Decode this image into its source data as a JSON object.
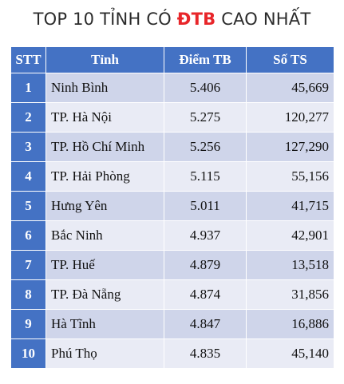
{
  "title": {
    "before": "TOP 10 TỈNH CÓ ",
    "highlight": "ĐTB",
    "after": " CAO NHẤT"
  },
  "colors": {
    "header": "#4472c4",
    "row_odd": "#cfd5ea",
    "row_even": "#e9ebf5",
    "highlight": "#e8262a"
  },
  "table": {
    "headers": [
      "STT",
      "Tỉnh",
      "Điểm TB",
      "Số TS"
    ],
    "rows": [
      {
        "stt": "1",
        "tinh": "Ninh Bình",
        "diem": "5.406",
        "so_ts": "45,669"
      },
      {
        "stt": "2",
        "tinh": "TP. Hà Nội",
        "diem": "5.275",
        "so_ts": "120,277"
      },
      {
        "stt": "3",
        "tinh": "TP. Hồ Chí Minh",
        "diem": "5.256",
        "so_ts": "127,290"
      },
      {
        "stt": "4",
        "tinh": "TP. Hải Phòng",
        "diem": "5.115",
        "so_ts": "55,156"
      },
      {
        "stt": "5",
        "tinh": "Hưng Yên",
        "diem": "5.011",
        "so_ts": "41,715"
      },
      {
        "stt": "6",
        "tinh": "Bắc Ninh",
        "diem": "4.937",
        "so_ts": "42,901"
      },
      {
        "stt": "7",
        "tinh": "TP. Huế",
        "diem": "4.879",
        "so_ts": "13,518"
      },
      {
        "stt": "8",
        "tinh": "TP. Đà Nẵng",
        "diem": "4.874",
        "so_ts": "31,856"
      },
      {
        "stt": "9",
        "tinh": "Hà Tĩnh",
        "diem": "4.847",
        "so_ts": "16,886"
      },
      {
        "stt": "10",
        "tinh": "Phú Thọ",
        "diem": "4.835",
        "so_ts": "45,140"
      }
    ]
  }
}
